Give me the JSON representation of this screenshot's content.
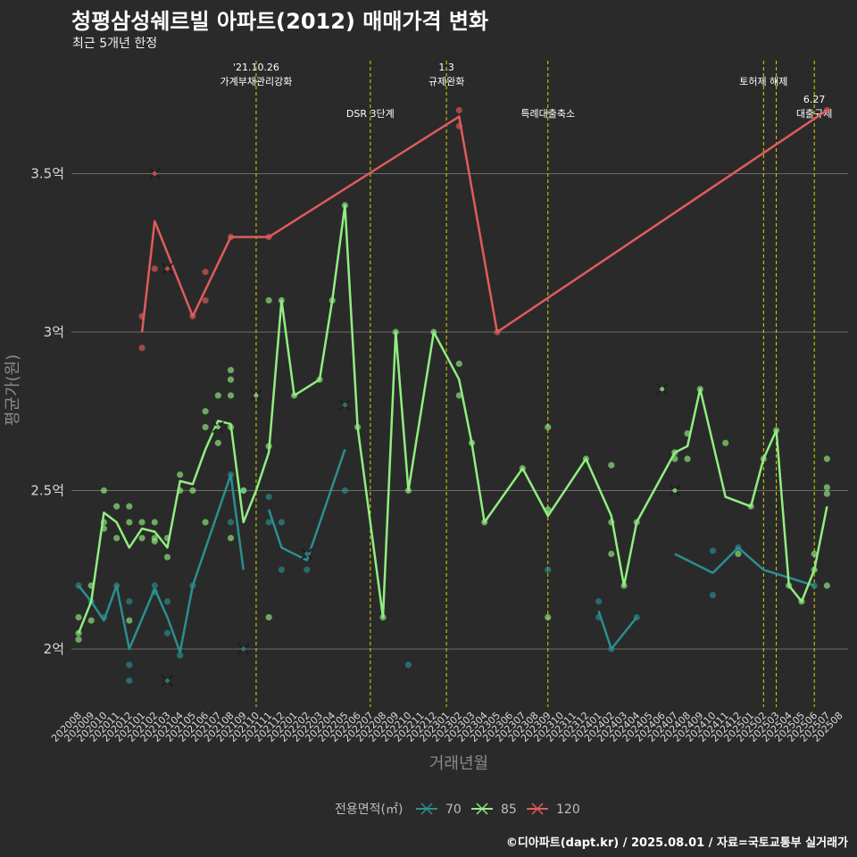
{
  "header": {
    "title": "청평삼성쉐르빌 아파트(2012) 매매가격 변화",
    "subtitle": "최근 5개년 한정",
    "caption": "©디아파트(dapt.kr) / 2025.08.01 / 자료=국토교통부 실거래가"
  },
  "chart_data": {
    "type": "line",
    "xlabel": "거래년월",
    "ylabel": "평균가(원)",
    "ylim": [
      1.8,
      3.9
    ],
    "y_ticks": [
      {
        "value": 2.0,
        "label": "2억"
      },
      {
        "value": 2.5,
        "label": "2.5억"
      },
      {
        "value": 3.0,
        "label": "3억"
      },
      {
        "value": 3.5,
        "label": "3.5억"
      }
    ],
    "categories": [
      "202008",
      "202009",
      "202010",
      "202011",
      "202012",
      "202101",
      "202102",
      "202103",
      "202104",
      "202105",
      "202106",
      "202107",
      "202108",
      "202109",
      "202110",
      "202111",
      "202112",
      "202201",
      "202202",
      "202203",
      "202204",
      "202205",
      "202206",
      "202207",
      "202208",
      "202209",
      "202210",
      "202211",
      "202212",
      "202301",
      "202302",
      "202303",
      "202304",
      "202305",
      "202306",
      "202307",
      "202308",
      "202309",
      "202310",
      "202311",
      "202312",
      "202401",
      "202402",
      "202403",
      "202404",
      "202405",
      "202406",
      "202407",
      "202408",
      "202409",
      "202410",
      "202411",
      "202412",
      "202501",
      "202502",
      "202503",
      "202504",
      "202505",
      "202506",
      "202507",
      "202508"
    ],
    "grid": true,
    "legend": {
      "title": "전용면적(㎡)",
      "position": "bottom"
    },
    "events": [
      {
        "x": 14.0,
        "label": "'21.10.26\n가계부채관리강화",
        "row": 0
      },
      {
        "x": 23.0,
        "label": "DSR 3단계",
        "row": 1
      },
      {
        "x": 29.0,
        "label": "1.3\n규제완화",
        "row": 0
      },
      {
        "x": 37.0,
        "label": "특례대출축소",
        "row": 1
      },
      {
        "x": 54.0,
        "label": "토허제 해제",
        "row": 0
      },
      {
        "x": 55.0,
        "label": "",
        "row": 0
      },
      {
        "x": 58.0,
        "label": "6.27\n대출규제",
        "row": 1
      }
    ],
    "series": [
      {
        "name": "70",
        "color": "#2a8f8f",
        "line": [
          [
            0,
            2.2
          ],
          [
            1,
            2.15
          ],
          [
            2,
            2.09
          ],
          [
            3,
            2.2
          ],
          [
            4,
            2.0
          ],
          [
            6,
            2.19
          ],
          [
            7,
            2.1
          ],
          [
            8,
            1.99
          ],
          [
            9,
            2.2
          ],
          [
            12,
            2.55
          ],
          [
            13,
            2.25
          ],
          null,
          [
            15,
            2.44
          ],
          [
            16,
            2.32
          ],
          [
            18,
            2.28
          ],
          [
            21,
            2.63
          ],
          null,
          [
            41,
            2.12
          ],
          [
            42,
            2.0
          ],
          [
            44,
            2.1
          ],
          null,
          [
            47,
            2.3
          ],
          [
            50,
            2.24
          ],
          [
            52,
            2.32
          ],
          [
            54,
            2.25
          ],
          [
            58,
            2.2
          ]
        ],
        "points": [
          [
            0,
            2.2
          ],
          [
            1,
            2.15
          ],
          [
            2,
            2.1
          ],
          [
            3,
            2.2
          ],
          [
            4,
            2.15
          ],
          [
            4,
            1.95
          ],
          [
            4,
            1.9
          ],
          [
            6,
            2.2
          ],
          [
            6,
            2.18
          ],
          [
            7,
            2.15
          ],
          [
            7,
            2.05
          ],
          [
            8,
            1.98
          ],
          [
            9,
            2.2
          ],
          [
            12,
            2.4
          ],
          [
            12,
            2.55
          ],
          [
            13,
            2.5
          ],
          [
            15,
            2.48
          ],
          [
            15,
            2.4
          ],
          [
            16,
            2.4
          ],
          [
            16,
            2.25
          ],
          [
            18,
            2.25
          ],
          [
            21,
            2.5
          ],
          [
            26,
            1.95
          ],
          [
            37,
            2.25
          ],
          [
            41,
            2.15
          ],
          [
            41,
            2.1
          ],
          [
            42,
            2.0
          ],
          [
            44,
            2.1
          ],
          [
            50,
            2.17
          ],
          [
            50,
            2.31
          ],
          [
            52,
            2.32
          ],
          [
            58,
            2.2
          ]
        ],
        "crosses": [
          [
            7,
            1.9
          ],
          [
            13,
            2.0
          ],
          [
            18,
            2.3
          ],
          [
            21,
            2.77
          ]
        ]
      },
      {
        "name": "85",
        "color": "#90ee80",
        "line": [
          [
            0,
            2.05
          ],
          [
            1,
            2.15
          ],
          [
            2,
            2.43
          ],
          [
            3,
            2.4
          ],
          [
            4,
            2.32
          ],
          [
            5,
            2.38
          ],
          [
            6,
            2.37
          ],
          [
            7,
            2.32
          ],
          [
            8,
            2.53
          ],
          [
            9,
            2.52
          ],
          [
            10,
            2.63
          ],
          [
            11,
            2.72
          ],
          [
            12,
            2.71
          ],
          [
            13,
            2.4
          ],
          [
            14,
            2.5
          ],
          [
            15,
            2.62
          ],
          [
            16,
            3.1
          ],
          [
            17,
            2.8
          ],
          [
            19,
            2.85
          ],
          [
            20,
            3.1
          ],
          [
            21,
            3.4
          ],
          [
            22,
            2.7
          ],
          [
            23,
            2.4
          ],
          [
            24,
            2.1
          ],
          [
            25,
            3.0
          ],
          [
            26,
            2.5
          ],
          [
            28,
            3.0
          ],
          [
            30,
            2.85
          ],
          [
            31,
            2.65
          ],
          [
            32,
            2.4
          ],
          [
            35,
            2.57
          ],
          [
            37,
            2.42
          ],
          [
            40,
            2.6
          ],
          [
            42,
            2.42
          ],
          [
            43,
            2.2
          ],
          [
            44,
            2.4
          ],
          [
            47,
            2.62
          ],
          [
            48,
            2.64
          ],
          [
            49,
            2.82
          ],
          [
            51,
            2.48
          ],
          [
            53,
            2.45
          ],
          [
            54,
            2.6
          ],
          [
            55,
            2.69
          ],
          [
            56,
            2.2
          ],
          [
            57,
            2.15
          ],
          [
            58,
            2.25
          ],
          [
            59,
            2.45
          ]
        ],
        "points": [
          [
            0,
            2.1
          ],
          [
            0,
            2.05
          ],
          [
            0,
            2.03
          ],
          [
            1,
            2.2
          ],
          [
            1,
            2.09
          ],
          [
            2,
            2.5
          ],
          [
            2,
            2.38
          ],
          [
            2,
            2.4
          ],
          [
            3,
            2.35
          ],
          [
            3,
            2.45
          ],
          [
            4,
            2.45
          ],
          [
            4,
            2.4
          ],
          [
            4,
            2.09
          ],
          [
            5,
            2.4
          ],
          [
            5,
            2.35
          ],
          [
            6,
            2.4
          ],
          [
            6,
            2.35
          ],
          [
            6,
            2.34
          ],
          [
            7,
            2.29
          ],
          [
            7,
            2.35
          ],
          [
            8,
            2.55
          ],
          [
            8,
            2.5
          ],
          [
            9,
            2.5
          ],
          [
            10,
            2.75
          ],
          [
            10,
            2.7
          ],
          [
            10,
            2.4
          ],
          [
            11,
            2.65
          ],
          [
            11,
            2.8
          ],
          [
            12,
            2.8
          ],
          [
            12,
            2.85
          ],
          [
            12,
            2.88
          ],
          [
            12,
            2.7
          ],
          [
            12,
            2.35
          ],
          [
            13,
            2.5
          ],
          [
            15,
            3.1
          ],
          [
            15,
            2.64
          ],
          [
            15,
            2.1
          ],
          [
            16,
            3.1
          ],
          [
            17,
            2.8
          ],
          [
            19,
            2.85
          ],
          [
            20,
            3.1
          ],
          [
            21,
            3.4
          ],
          [
            22,
            2.7
          ],
          [
            24,
            2.1
          ],
          [
            25,
            3.0
          ],
          [
            26,
            2.5
          ],
          [
            28,
            3.0
          ],
          [
            30,
            2.9
          ],
          [
            30,
            2.8
          ],
          [
            31,
            2.65
          ],
          [
            32,
            2.4
          ],
          [
            35,
            2.57
          ],
          [
            37,
            2.7
          ],
          [
            37,
            2.44
          ],
          [
            37,
            2.1
          ],
          [
            40,
            2.6
          ],
          [
            42,
            2.58
          ],
          [
            42,
            2.4
          ],
          [
            42,
            2.3
          ],
          [
            43,
            2.2
          ],
          [
            44,
            2.4
          ],
          [
            47,
            2.6
          ],
          [
            47,
            2.62
          ],
          [
            48,
            2.6
          ],
          [
            48,
            2.68
          ],
          [
            49,
            2.82
          ],
          [
            51,
            2.65
          ],
          [
            52,
            2.3
          ],
          [
            53,
            2.45
          ],
          [
            54,
            2.6
          ],
          [
            55,
            2.69
          ],
          [
            56,
            2.2
          ],
          [
            57,
            2.15
          ],
          [
            58,
            2.3
          ],
          [
            58,
            2.25
          ],
          [
            59,
            2.6
          ],
          [
            59,
            2.51
          ],
          [
            59,
            2.49
          ],
          [
            59,
            2.2
          ]
        ],
        "crosses": [
          [
            14,
            2.8
          ],
          [
            11,
            2.7
          ],
          [
            46,
            2.82
          ],
          [
            47,
            2.5
          ]
        ]
      },
      {
        "name": "120",
        "color": "#e05c5c",
        "line": [
          [
            5,
            3.0
          ],
          [
            6,
            3.35
          ],
          [
            9,
            3.05
          ],
          [
            12,
            3.3
          ],
          [
            15,
            3.3
          ],
          [
            30,
            3.68
          ],
          [
            33,
            3.0
          ],
          [
            59,
            3.7
          ]
        ],
        "points": [
          [
            5,
            3.05
          ],
          [
            5,
            2.95
          ],
          [
            6,
            3.2
          ],
          [
            9,
            3.05
          ],
          [
            10,
            3.19
          ],
          [
            10,
            3.1
          ],
          [
            12,
            3.3
          ],
          [
            15,
            3.3
          ],
          [
            30,
            3.7
          ],
          [
            30,
            3.65
          ],
          [
            33,
            3.0
          ],
          [
            59,
            3.7
          ]
        ],
        "crosses": [
          [
            6,
            3.5
          ],
          [
            7,
            3.2
          ]
        ]
      }
    ]
  }
}
